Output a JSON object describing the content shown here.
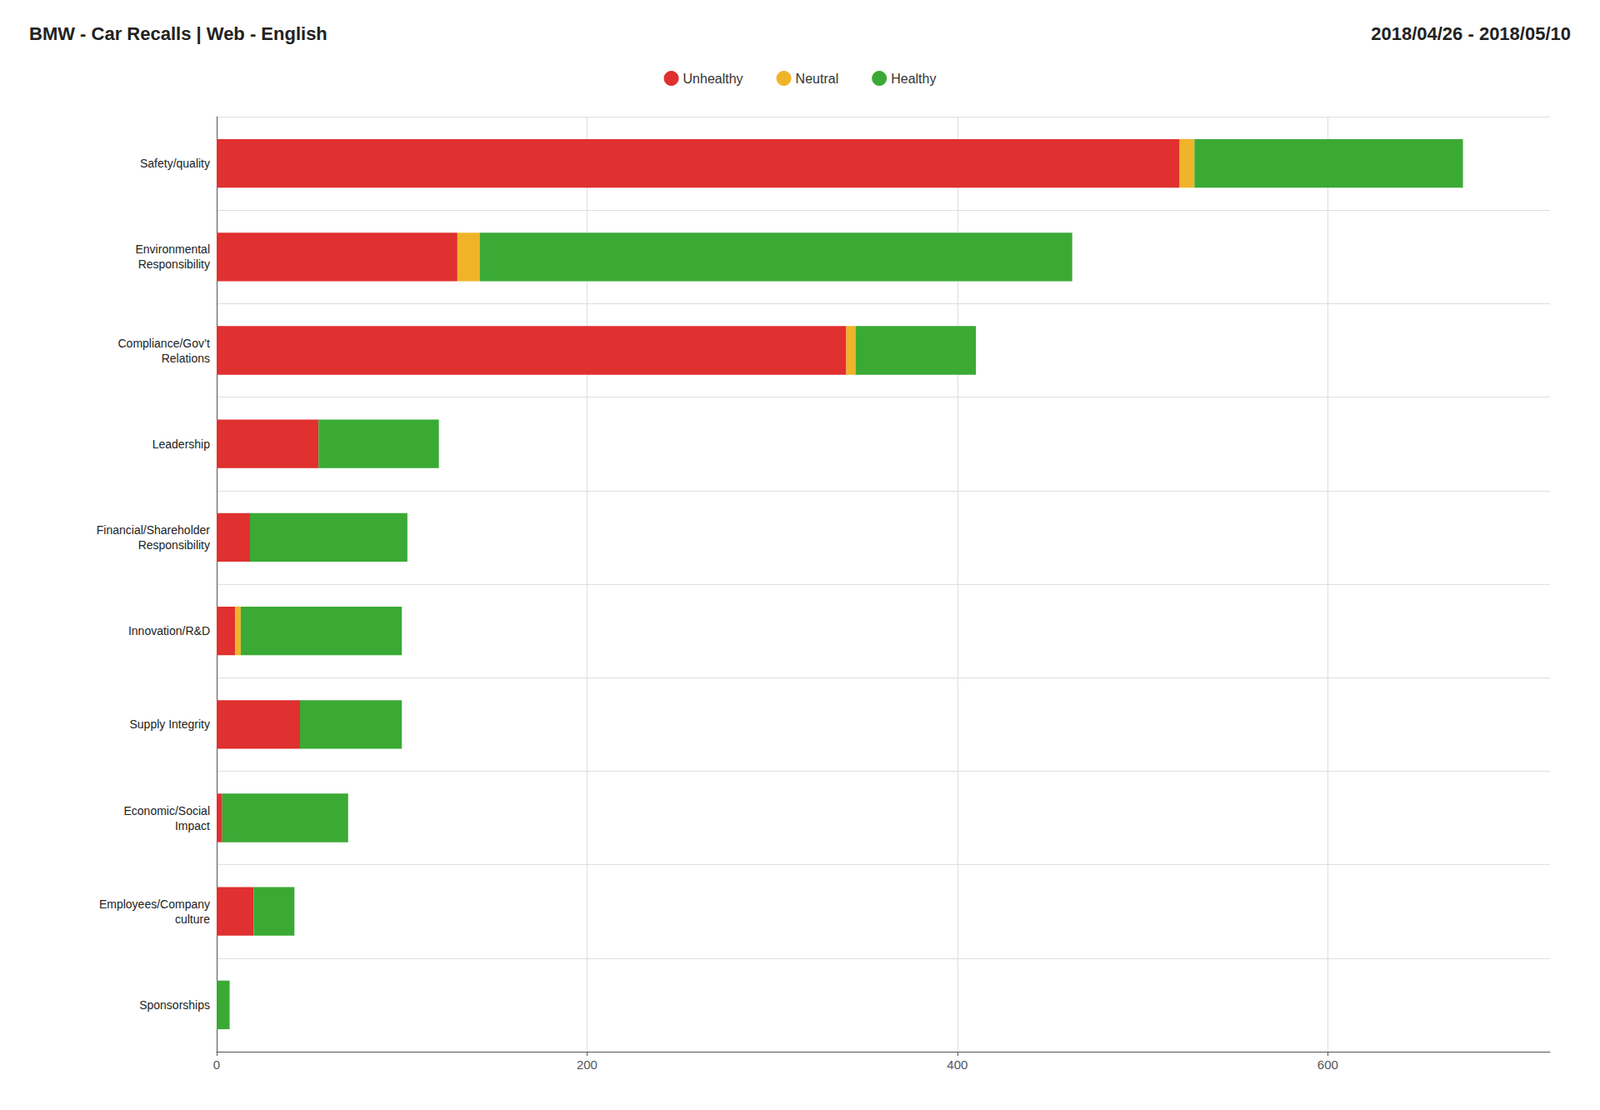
{
  "chart_data": {
    "type": "bar",
    "orientation": "horizontal",
    "stacked": true,
    "title": "BMW - Car Recalls | Web - English",
    "subtitle": "2018/04/26 - 2018/05/10",
    "categories": [
      "Safety/quality",
      "Environmental\nResponsibility",
      "Compliance/Gov’t\nRelations",
      "Leadership",
      "Financial/Shareholder\nResponsibility",
      "Innovation/R&D",
      "Supply Integrity",
      "Economic/Social\nImpact",
      "Employees/Company\nculture",
      "Sponsorships"
    ],
    "series": [
      {
        "name": "Unhealthy",
        "color": "#e03030",
        "values": [
          520,
          130,
          340,
          55,
          18,
          10,
          45,
          3,
          20,
          0
        ]
      },
      {
        "name": "Neutral",
        "color": "#f0b429",
        "values": [
          8,
          12,
          5,
          0,
          0,
          3,
          0,
          0,
          0,
          0
        ]
      },
      {
        "name": "Healthy",
        "color": "#3aaa35",
        "values": [
          145,
          320,
          65,
          65,
          85,
          87,
          55,
          68,
          22,
          7
        ]
      }
    ],
    "xlim": [
      0,
      720
    ],
    "xticks": [
      0,
      200,
      400,
      600
    ],
    "grid": true,
    "legend": "upper center"
  }
}
